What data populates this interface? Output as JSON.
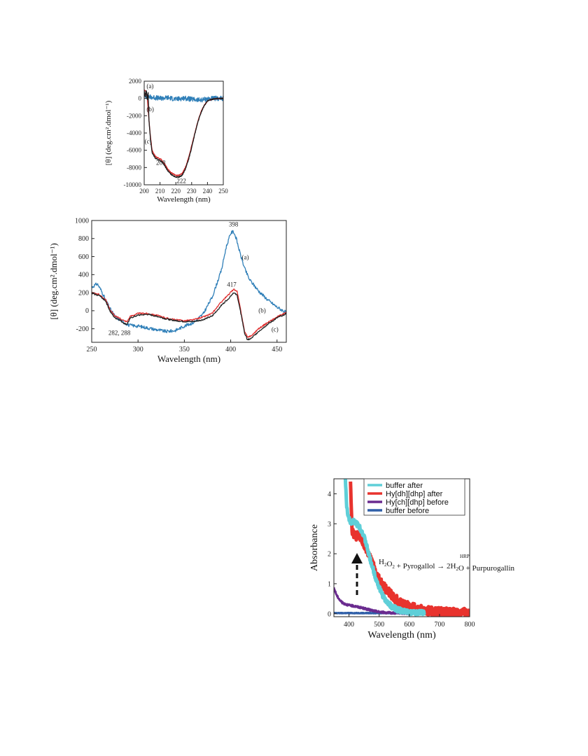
{
  "chart_data": [
    {
      "type": "line",
      "xlabel": "Wavelength (nm)",
      "ylabel": "[θ] (deg.cm².dmol⁻¹)",
      "xlim": [
        200,
        250
      ],
      "ylim": [
        -10000,
        2000
      ],
      "xticks": [
        "200",
        "210",
        "220",
        "230",
        "240",
        "250"
      ],
      "yticks": [
        "2000",
        "0",
        "-2000",
        "-4000",
        "-6000",
        "-8000",
        "-10000"
      ],
      "grid": false,
      "annotations": [
        {
          "text": "(a)",
          "x": 201.5,
          "y": 1200
        },
        {
          "text": "(b)",
          "x": 201.5,
          "y": -1500
        },
        {
          "text": "(c)",
          "x": 200.3,
          "y": -5200
        },
        {
          "text": "208",
          "x": 207.5,
          "y": -7700
        },
        {
          "text": "222",
          "x": 220.5,
          "y": -9800
        }
      ],
      "series": [
        {
          "label": "a",
          "color": "#2f7fb8",
          "noise": 280,
          "points": [
            [
              200,
              300
            ],
            [
              205,
              150
            ],
            [
              210,
              0
            ],
            [
              215,
              100
            ],
            [
              220,
              -100
            ],
            [
              225,
              50
            ],
            [
              230,
              -100
            ],
            [
              235,
              -200
            ],
            [
              240,
              -50
            ],
            [
              245,
              0
            ],
            [
              250,
              0
            ]
          ]
        },
        {
          "label": "b",
          "color": "#d62728",
          "noise": 60,
          "points": [
            [
              200,
              1000
            ],
            [
              201,
              800
            ],
            [
              202,
              0
            ],
            [
              203,
              -2500
            ],
            [
              204,
              -4500
            ],
            [
              205,
              -6000
            ],
            [
              207,
              -6700
            ],
            [
              209,
              -6900
            ],
            [
              211,
              -7100
            ],
            [
              213,
              -7600
            ],
            [
              215,
              -8200
            ],
            [
              217,
              -8600
            ],
            [
              220,
              -8900
            ],
            [
              222,
              -8900
            ],
            [
              224,
              -8700
            ],
            [
              226,
              -8000
            ],
            [
              228,
              -6900
            ],
            [
              230,
              -5500
            ],
            [
              232,
              -4000
            ],
            [
              234,
              -2600
            ],
            [
              236,
              -1500
            ],
            [
              238,
              -800
            ],
            [
              240,
              -300
            ],
            [
              243,
              -80
            ],
            [
              246,
              0
            ],
            [
              250,
              0
            ]
          ]
        },
        {
          "label": "c",
          "color": "#1a1a1a",
          "noise": 60,
          "points": [
            [
              200,
              900
            ],
            [
              200.7,
              200
            ],
            [
              201.3,
              1000
            ],
            [
              202,
              -200
            ],
            [
              202.5,
              700
            ],
            [
              203,
              -2500
            ],
            [
              204,
              -4800
            ],
            [
              205,
              -6300
            ],
            [
              207,
              -6900
            ],
            [
              209,
              -7100
            ],
            [
              211,
              -7300
            ],
            [
              213,
              -7800
            ],
            [
              215,
              -8400
            ],
            [
              217,
              -8800
            ],
            [
              220,
              -9100
            ],
            [
              222,
              -9100
            ],
            [
              224,
              -8900
            ],
            [
              226,
              -8200
            ],
            [
              228,
              -7100
            ],
            [
              230,
              -5700
            ],
            [
              232,
              -4100
            ],
            [
              234,
              -2700
            ],
            [
              236,
              -1600
            ],
            [
              238,
              -800
            ],
            [
              240,
              -300
            ],
            [
              243,
              -80
            ],
            [
              246,
              0
            ],
            [
              250,
              0
            ]
          ]
        }
      ]
    },
    {
      "type": "line",
      "xlabel": "Wavelength (nm)",
      "ylabel": "[θ] (deg.cm².dmol⁻¹)",
      "xlim": [
        250,
        460
      ],
      "ylim": [
        -350,
        1000
      ],
      "xticks": [
        "250",
        "300",
        "350",
        "400",
        "450"
      ],
      "yticks": [
        "1000",
        "800",
        "600",
        "400",
        "200",
        "0",
        "-200"
      ],
      "grid": false,
      "annotations": [
        {
          "text": "398",
          "x": 398,
          "y": 935
        },
        {
          "text": "(a)",
          "x": 412,
          "y": 570
        },
        {
          "text": "417",
          "x": 396,
          "y": 265
        },
        {
          "text": "(b)",
          "x": 430,
          "y": -20
        },
        {
          "text": "(c)",
          "x": 444,
          "y": -230
        },
        {
          "text": "282, 288",
          "x": 268,
          "y": -270
        }
      ],
      "series": [
        {
          "label": "a",
          "color": "#2f7fb8",
          "noise": 18,
          "points": [
            [
              250,
              260
            ],
            [
              256,
              300
            ],
            [
              260,
              230
            ],
            [
              265,
              120
            ],
            [
              270,
              20
            ],
            [
              275,
              -60
            ],
            [
              280,
              -100
            ],
            [
              285,
              -130
            ],
            [
              290,
              -160
            ],
            [
              300,
              -170
            ],
            [
              310,
              -190
            ],
            [
              320,
              -210
            ],
            [
              330,
              -230
            ],
            [
              340,
              -220
            ],
            [
              350,
              -170
            ],
            [
              360,
              -130
            ],
            [
              370,
              -40
            ],
            [
              380,
              150
            ],
            [
              390,
              450
            ],
            [
              395,
              700
            ],
            [
              400,
              860
            ],
            [
              403,
              880
            ],
            [
              406,
              800
            ],
            [
              410,
              640
            ],
            [
              415,
              470
            ],
            [
              420,
              350
            ],
            [
              430,
              220
            ],
            [
              440,
              120
            ],
            [
              450,
              40
            ],
            [
              460,
              -20
            ]
          ]
        },
        {
          "label": "b",
          "color": "#e03030",
          "noise": 8,
          "points": [
            [
              250,
              200
            ],
            [
              258,
              180
            ],
            [
              265,
              120
            ],
            [
              270,
              10
            ],
            [
              275,
              -60
            ],
            [
              280,
              -80
            ],
            [
              285,
              -110
            ],
            [
              288,
              -120
            ],
            [
              292,
              -60
            ],
            [
              300,
              -30
            ],
            [
              310,
              -30
            ],
            [
              320,
              -50
            ],
            [
              330,
              -80
            ],
            [
              340,
              -100
            ],
            [
              350,
              -110
            ],
            [
              360,
              -100
            ],
            [
              370,
              -70
            ],
            [
              380,
              -30
            ],
            [
              390,
              100
            ],
            [
              398,
              180
            ],
            [
              403,
              240
            ],
            [
              407,
              210
            ],
            [
              412,
              -60
            ],
            [
              415,
              -230
            ],
            [
              418,
              -290
            ],
            [
              422,
              -280
            ],
            [
              430,
              -200
            ],
            [
              440,
              -130
            ],
            [
              450,
              -70
            ],
            [
              460,
              -20
            ]
          ]
        },
        {
          "label": "c",
          "color": "#222222",
          "noise": 8,
          "points": [
            [
              250,
              190
            ],
            [
              258,
              170
            ],
            [
              265,
              110
            ],
            [
              270,
              -10
            ],
            [
              275,
              -80
            ],
            [
              280,
              -100
            ],
            [
              285,
              -140
            ],
            [
              288,
              -150
            ],
            [
              292,
              -80
            ],
            [
              300,
              -50
            ],
            [
              310,
              -40
            ],
            [
              320,
              -60
            ],
            [
              330,
              -90
            ],
            [
              340,
              -110
            ],
            [
              350,
              -120
            ],
            [
              360,
              -120
            ],
            [
              370,
              -100
            ],
            [
              380,
              -60
            ],
            [
              390,
              60
            ],
            [
              398,
              140
            ],
            [
              403,
              200
            ],
            [
              407,
              170
            ],
            [
              412,
              -80
            ],
            [
              415,
              -250
            ],
            [
              418,
              -320
            ],
            [
              422,
              -310
            ],
            [
              430,
              -230
            ],
            [
              440,
              -150
            ],
            [
              450,
              -80
            ],
            [
              460,
              -30
            ]
          ]
        }
      ]
    },
    {
      "type": "line",
      "xlabel": "Wavelength (nm)",
      "ylabel": "Absorbance",
      "xlim": [
        350,
        800
      ],
      "ylim": [
        -0.1,
        4.5
      ],
      "xticks": [
        "400",
        "500",
        "600",
        "700",
        "800"
      ],
      "yticks": [
        "4",
        "3",
        "2",
        "1",
        "0"
      ],
      "grid": false,
      "legend_position": "top-right",
      "reaction_text": {
        "left": "H",
        "s1": "2",
        "o": "O",
        "s2": "2",
        "mid": " + Pyrogallol ",
        "arrow_label": "HRP",
        "arrow": "→",
        "right1": " 2H",
        "s3": "2",
        "right2": "O + Purpurogallin"
      },
      "series": [
        {
          "name": "buffer after",
          "color": "#5fcfd8",
          "width": 5,
          "noise": 0.08,
          "points": [
            [
              388,
              4.5
            ],
            [
              392,
              3.6
            ],
            [
              398,
              3.2
            ],
            [
              405,
              3.05
            ],
            [
              415,
              3.1
            ],
            [
              425,
              3.0
            ],
            [
              435,
              2.9
            ],
            [
              445,
              2.7
            ],
            [
              455,
              2.4
            ],
            [
              465,
              2.0
            ],
            [
              475,
              1.65
            ],
            [
              485,
              1.3
            ],
            [
              495,
              1.0
            ],
            [
              505,
              0.75
            ],
            [
              520,
              0.45
            ],
            [
              540,
              0.25
            ],
            [
              560,
              0.14
            ],
            [
              580,
              0.08
            ],
            [
              600,
              0.05
            ],
            [
              620,
              0.03
            ],
            [
              650,
              0.02
            ]
          ]
        },
        {
          "name": "Hy[dh][dhp] after",
          "color": "#e8332e",
          "width": 5,
          "noise": 0.15,
          "points": [
            [
              405,
              4.5
            ],
            [
              410,
              2.8
            ],
            [
              420,
              2.6
            ],
            [
              430,
              2.6
            ],
            [
              440,
              2.5
            ],
            [
              450,
              2.3
            ],
            [
              460,
              2.1
            ],
            [
              470,
              1.85
            ],
            [
              480,
              1.6
            ],
            [
              490,
              1.35
            ],
            [
              500,
              1.15
            ],
            [
              520,
              0.85
            ],
            [
              540,
              0.62
            ],
            [
              560,
              0.45
            ],
            [
              580,
              0.33
            ],
            [
              600,
              0.24
            ],
            [
              620,
              0.17
            ],
            [
              650,
              0.11
            ],
            [
              680,
              0.07
            ],
            [
              710,
              0.05
            ],
            [
              740,
              0.04
            ],
            [
              770,
              0.03
            ],
            [
              800,
              0.03
            ]
          ]
        },
        {
          "name": "Hy[ch][dhp] before",
          "color": "#6a2b8f",
          "width": 3,
          "noise": 0.03,
          "points": [
            [
              350,
              0.85
            ],
            [
              360,
              0.6
            ],
            [
              370,
              0.45
            ],
            [
              380,
              0.35
            ],
            [
              400,
              0.28
            ],
            [
              420,
              0.25
            ],
            [
              440,
              0.2
            ],
            [
              460,
              0.15
            ],
            [
              480,
              0.1
            ],
            [
              500,
              0.06
            ],
            [
              530,
              0.03
            ],
            [
              570,
              0.02
            ],
            [
              600,
              0.01
            ]
          ]
        },
        {
          "name": "buffer before",
          "color": "#2f5fa8",
          "width": 3,
          "noise": 0.01,
          "points": [
            [
              350,
              0.02
            ],
            [
              450,
              0.02
            ],
            [
              550,
              0.02
            ],
            [
              650,
              0.02
            ],
            [
              800,
              0.02
            ]
          ]
        }
      ]
    }
  ]
}
